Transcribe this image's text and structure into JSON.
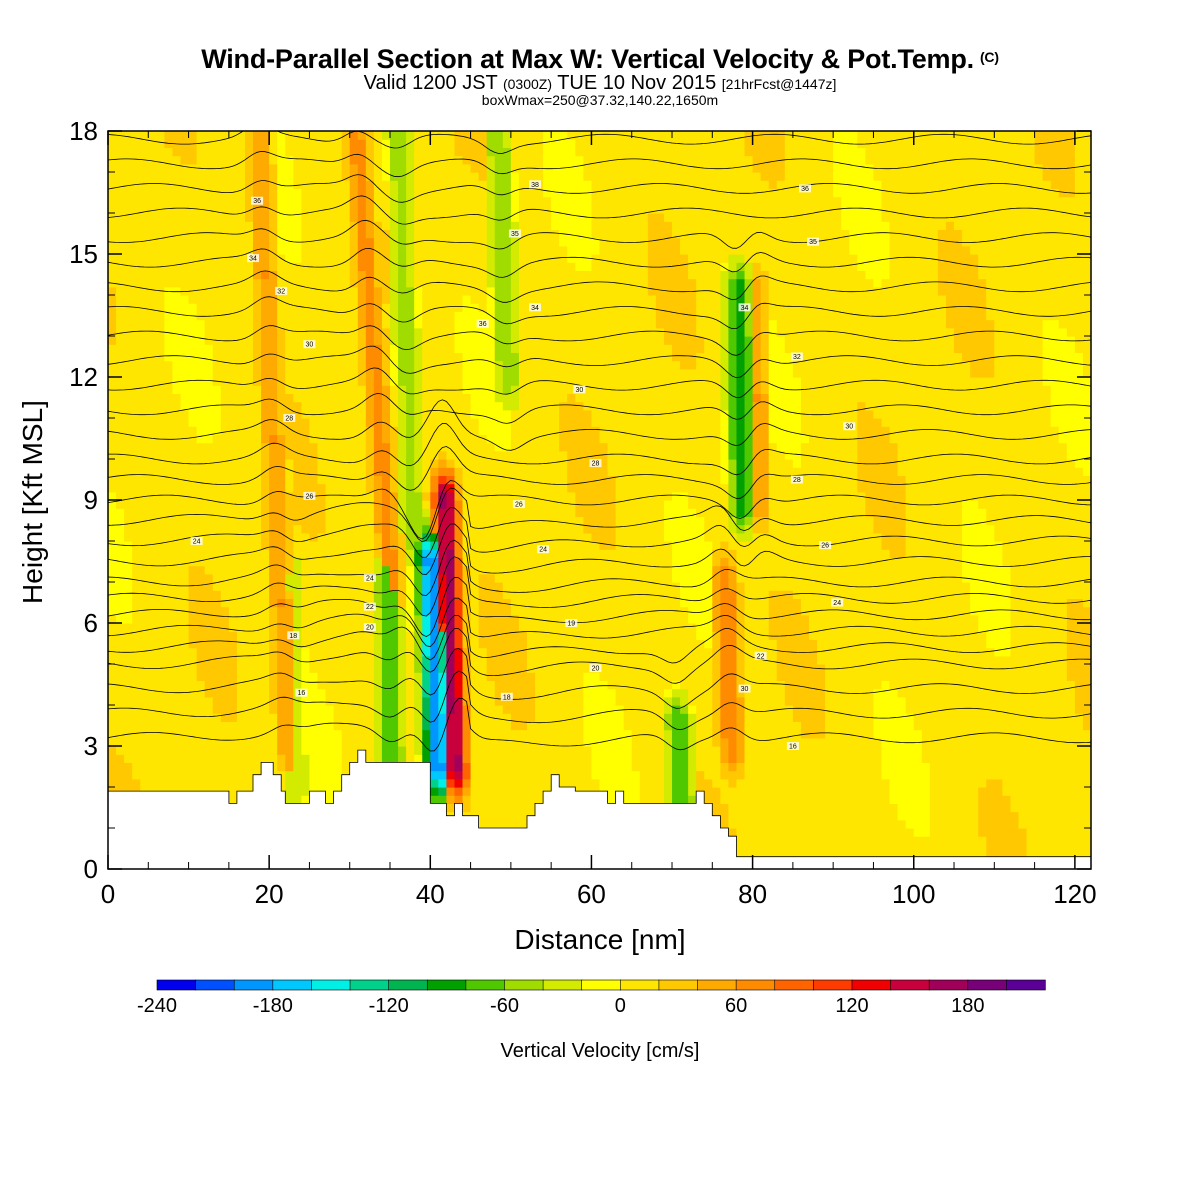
{
  "header": {
    "title": "Wind-Parallel Section at Max W: Vertical Velocity & Pot.Temp.",
    "copyright": "(C)",
    "valid_prefix": "Valid 1200 JST",
    "valid_z": "(0300Z)",
    "valid_date": "TUE 10 Nov 2015",
    "forecast": "[21hrFcst@1447z]",
    "box_info": "boxWmax=250@37.32,140.22,1650m"
  },
  "chart_data": {
    "type": "heatmap",
    "xlabel": "Distance [nm]",
    "ylabel": "Height [Kft MSL]",
    "xlim": [
      0,
      122
    ],
    "ylim": [
      0,
      18
    ],
    "x_ticks": [
      0,
      20,
      40,
      60,
      80,
      100,
      120
    ],
    "y_ticks": [
      0,
      3,
      6,
      9,
      12,
      15,
      18
    ],
    "colorbar": {
      "title": "Vertical Velocity [cm/s]",
      "levels": [
        -240,
        -220,
        -200,
        -180,
        -160,
        -140,
        -120,
        -100,
        -80,
        -60,
        -40,
        -20,
        0,
        20,
        40,
        60,
        80,
        100,
        120,
        140,
        160,
        180,
        200
      ],
      "tick_labels": [
        "-240",
        "-180",
        "-120",
        "-60",
        "0",
        "60",
        "120",
        "180"
      ],
      "colors": [
        "#0000ee",
        "#0050ff",
        "#0096ff",
        "#00c8ff",
        "#00f0e6",
        "#00d28c",
        "#00b450",
        "#00a000",
        "#50c800",
        "#a0dc00",
        "#d2eb00",
        "#ffff00",
        "#ffe600",
        "#ffc800",
        "#ffaa00",
        "#ff8c00",
        "#ff6400",
        "#ff3c00",
        "#f00000",
        "#c8003c",
        "#a0005a",
        "#780078",
        "#5a0096"
      ]
    },
    "background_value": 10,
    "vertical_velocity_features": [
      {
        "x": 20.5,
        "y_from": 3,
        "y_to": 18,
        "value": 60,
        "tilt": -2.5,
        "label": "updraft"
      },
      {
        "x": 23,
        "y_from": 2,
        "y_to": 7,
        "value": -40,
        "tilt": -1,
        "label": "downdraft"
      },
      {
        "x": 33,
        "y_from": 7,
        "y_to": 18,
        "value": 70,
        "tilt": -4,
        "label": "updraft"
      },
      {
        "x": 35,
        "y_from": 2.5,
        "y_to": 7,
        "value": -80,
        "tilt": -1,
        "label": "downdraft"
      },
      {
        "x": 37,
        "y_from": 8,
        "y_to": 18,
        "value": -50,
        "tilt": -2,
        "label": "downdraft"
      },
      {
        "x": 40.5,
        "y_from": 2.5,
        "y_to": 7.5,
        "value": -200,
        "tilt": -2,
        "label": "downdraft"
      },
      {
        "x": 42.5,
        "y_from": 2.5,
        "y_to": 9,
        "value": 170,
        "tilt": -2,
        "label": "updraft"
      },
      {
        "x": 49,
        "y_from": 12,
        "y_to": 18,
        "value": -60,
        "tilt": -2,
        "label": "downdraft"
      },
      {
        "x": 71,
        "y_from": 1.6,
        "y_to": 3.5,
        "value": -80,
        "tilt": -2,
        "label": "downdraft"
      },
      {
        "x": 77,
        "y_from": 3,
        "y_to": 7,
        "value": 80,
        "tilt": -2,
        "label": "updraft"
      },
      {
        "x": 78.5,
        "y_from": 9,
        "y_to": 14,
        "value": -100,
        "tilt": -1,
        "label": "downdraft"
      },
      {
        "x": 80.5,
        "y_from": 9,
        "y_to": 14,
        "value": 60,
        "tilt": -1,
        "label": "updraft"
      }
    ],
    "terrain_kft": {
      "x": [
        0,
        15,
        15,
        16,
        16,
        18,
        18,
        19,
        19,
        20.5,
        20.5,
        21.5,
        21.5,
        22,
        22,
        25,
        25,
        27,
        27,
        28,
        28,
        29,
        29,
        30,
        30,
        31,
        31,
        32,
        32,
        33,
        33,
        35,
        35,
        36,
        36,
        40,
        40,
        42,
        42,
        43,
        43,
        44,
        44,
        46,
        46,
        48,
        48,
        52,
        52,
        53,
        53,
        54,
        54,
        55,
        55,
        56,
        56,
        58,
        58,
        62,
        62,
        63,
        63,
        64,
        64,
        73,
        73,
        74,
        74,
        75,
        75,
        76,
        76,
        77,
        77,
        78,
        78,
        79,
        79,
        80,
        80,
        122
      ],
      "terrain": [
        1.9,
        1.9,
        1.6,
        1.6,
        1.9,
        1.9,
        2.3,
        2.3,
        2.6,
        2.6,
        2.3,
        2.3,
        1.9,
        1.9,
        1.6,
        1.6,
        1.9,
        1.9,
        1.6,
        1.6,
        1.9,
        1.9,
        2.3,
        2.3,
        2.6,
        2.6,
        2.9,
        2.9,
        2.6,
        2.6,
        2.6,
        2.6,
        2.6,
        2.6,
        2.6,
        2.6,
        1.6,
        1.6,
        1.3,
        1.3,
        1.6,
        1.6,
        1.3,
        1.3,
        1.0,
        1.0,
        1.0,
        1.0,
        1.3,
        1.3,
        1.6,
        1.6,
        1.9,
        1.9,
        2.3,
        2.3,
        2.0,
        2.0,
        1.9,
        1.9,
        1.6,
        1.6,
        1.9,
        1.9,
        1.6,
        1.6,
        1.9,
        1.9,
        1.6,
        1.6,
        1.3,
        1.3,
        1.0,
        1.0,
        0.8,
        0.8,
        0.3,
        0.3,
        0.3,
        0.3,
        0.3,
        0.3
      ]
    },
    "isentropes": {
      "base_kft": [
        3.2,
        3.8,
        4.4,
        5.0,
        5.4,
        5.8,
        6.2,
        6.6,
        7.0,
        7.5,
        8.0,
        8.5,
        9.0,
        9.5,
        10.0,
        10.6,
        11.2,
        11.8,
        12.4,
        13.0,
        13.6,
        14.2,
        14.8,
        15.4,
        16.0,
        16.6,
        17.2,
        17.8
      ],
      "contour_labels": [
        {
          "x": 24,
          "y": 4.3,
          "text": "16"
        },
        {
          "x": 23,
          "y": 5.7,
          "text": "18"
        },
        {
          "x": 11,
          "y": 8.0,
          "text": "24"
        },
        {
          "x": 25,
          "y": 9.1,
          "text": "26"
        },
        {
          "x": 22.5,
          "y": 11.0,
          "text": "28"
        },
        {
          "x": 25,
          "y": 12.8,
          "text": "30"
        },
        {
          "x": 21.5,
          "y": 14.1,
          "text": "32"
        },
        {
          "x": 18,
          "y": 14.9,
          "text": "34"
        },
        {
          "x": 18.5,
          "y": 16.3,
          "text": "36"
        },
        {
          "x": 32.5,
          "y": 7.1,
          "text": "24"
        },
        {
          "x": 32.5,
          "y": 6.4,
          "text": "22"
        },
        {
          "x": 32.5,
          "y": 5.9,
          "text": "20"
        },
        {
          "x": 49.5,
          "y": 4.2,
          "text": "18"
        },
        {
          "x": 57.5,
          "y": 6.0,
          "text": "19"
        },
        {
          "x": 60.5,
          "y": 4.9,
          "text": "20"
        },
        {
          "x": 54,
          "y": 7.8,
          "text": "24"
        },
        {
          "x": 51,
          "y": 8.9,
          "text": "26"
        },
        {
          "x": 60.5,
          "y": 9.9,
          "text": "28"
        },
        {
          "x": 58.5,
          "y": 11.7,
          "text": "30"
        },
        {
          "x": 46.5,
          "y": 13.3,
          "text": "36"
        },
        {
          "x": 53,
          "y": 13.7,
          "text": "34"
        },
        {
          "x": 50.5,
          "y": 15.5,
          "text": "35"
        },
        {
          "x": 53,
          "y": 16.7,
          "text": "38"
        },
        {
          "x": 81,
          "y": 5.2,
          "text": "22"
        },
        {
          "x": 79,
          "y": 4.4,
          "text": "30"
        },
        {
          "x": 85,
          "y": 3.0,
          "text": "16"
        },
        {
          "x": 90.5,
          "y": 6.5,
          "text": "24"
        },
        {
          "x": 89,
          "y": 7.9,
          "text": "26"
        },
        {
          "x": 85.5,
          "y": 9.5,
          "text": "28"
        },
        {
          "x": 92,
          "y": 10.8,
          "text": "30"
        },
        {
          "x": 85.5,
          "y": 12.5,
          "text": "32"
        },
        {
          "x": 79,
          "y": 13.7,
          "text": "34"
        },
        {
          "x": 87.5,
          "y": 15.3,
          "text": "35"
        },
        {
          "x": 86.5,
          "y": 16.6,
          "text": "36"
        }
      ]
    }
  }
}
